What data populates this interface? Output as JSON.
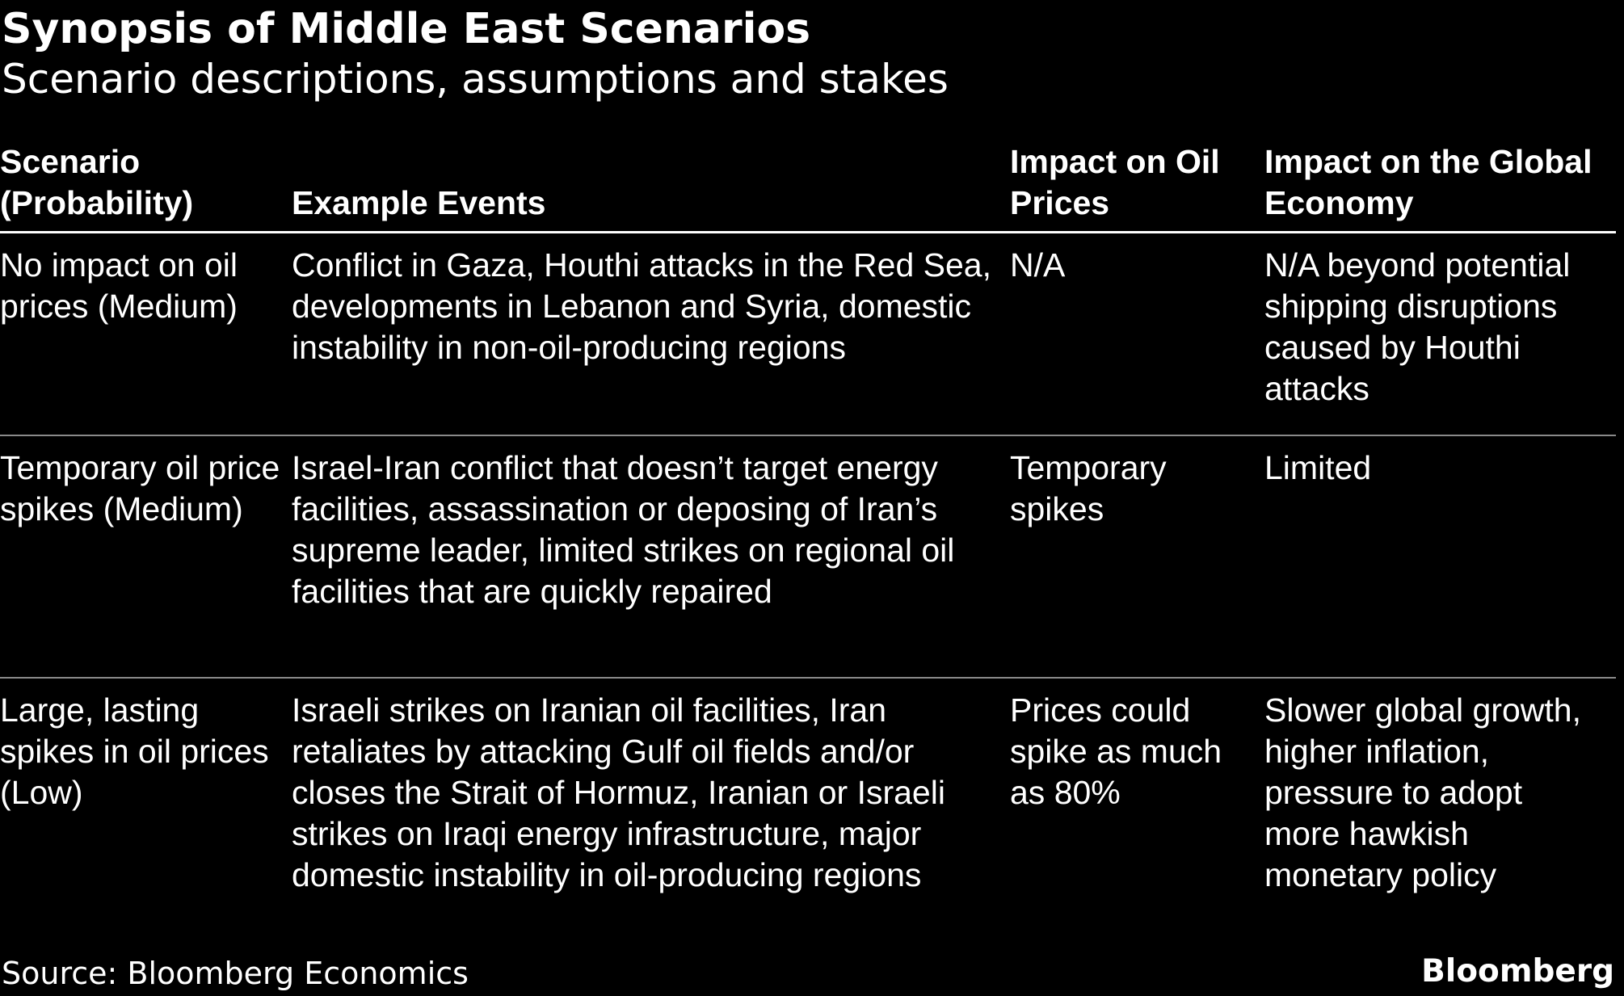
{
  "header": {
    "title": "Synopsis of Middle East Scenarios",
    "subtitle": "Scenario descriptions, assumptions and stakes"
  },
  "chart_data": {
    "type": "table",
    "columns": [
      "Scenario (Probability)",
      "Example Events",
      "Impact on Oil Prices",
      "Impact on the Global Economy"
    ],
    "rows": [
      [
        "No impact on oil prices (Medium)",
        "Conflict in Gaza, Houthi attacks in the Red Sea, developments in Lebanon and Syria, domestic instability in non-oil-producing regions",
        "N/A",
        "N/A beyond potential shipping disruptions caused by Houthi attacks"
      ],
      [
        "Temporary oil price spikes (Medium)",
        "Israel-Iran conflict that doesn’t target energy facilities, assassination or deposing of Iran’s supreme leader, limited strikes on regional oil facilities that are quickly repaired",
        "Temporary spikes",
        "Limited"
      ],
      [
        "Large, lasting spikes in oil prices (Low)",
        "Israeli strikes on Iranian oil facilities, Iran retaliates by attacking Gulf oil fields and/or closes the Strait of Hormuz, Iranian or Israeli strikes on Iraqi energy infrastructure, major domestic instability in oil-producing regions",
        "Prices could spike as much as 80%",
        "Slower global growth, higher inflation, pressure to adopt more hawkish monetary policy"
      ]
    ]
  },
  "footer": {
    "source": "Source: Bloomberg Economics",
    "brand": "Bloomberg"
  }
}
